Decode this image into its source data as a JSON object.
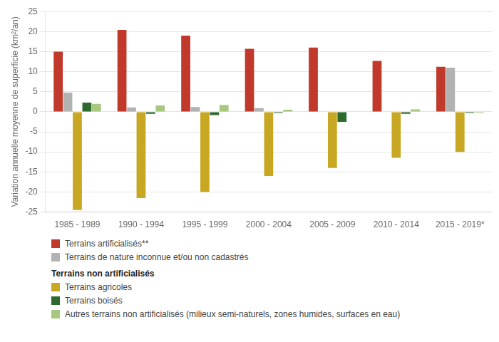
{
  "chart_data": {
    "type": "bar",
    "categories": [
      "1985 - 1989",
      "1990 - 1994",
      "1995 - 1999",
      "2000 - 2004",
      "2005 - 2009",
      "2010 - 2014",
      "2015 - 2019*"
    ],
    "series": [
      {
        "name": "Terrains artificialisés**",
        "color": "#c0392b",
        "values": [
          15,
          20.4,
          19,
          15.7,
          16,
          12.7,
          11.2
        ]
      },
      {
        "name": "Terrains de nature inconnue et/ou non cadastrés",
        "color": "#b2b2b2",
        "values": [
          4.8,
          1.1,
          1.2,
          0.9,
          0,
          0,
          11
        ]
      },
      {
        "name": "Terrains agricoles",
        "color": "#c8a822",
        "values": [
          -24.5,
          -21.5,
          -20,
          -16,
          -14,
          -11.5,
          -10
        ]
      },
      {
        "name": "Terrains boisés",
        "color": "#2d6a2d",
        "values": [
          2.3,
          -0.5,
          -0.8,
          -0.3,
          -2.5,
          -0.5,
          -0.3
        ]
      },
      {
        "name": "Autres terrains non artificialisés (milieux semi-naturels, zones humides, surfaces en eau)",
        "color": "#a8c880",
        "values": [
          2.0,
          1.6,
          1.7,
          0.5,
          0,
          0.6,
          -0.3
        ]
      }
    ],
    "y_label": "Variation annuelle moyenne de superficie (km²/an)",
    "ylim": [
      -25,
      25
    ],
    "yticks": [
      -25,
      -20,
      -15,
      -10,
      -5,
      0,
      5,
      10,
      15,
      20,
      25
    ],
    "grid": true,
    "legend": "bottom",
    "annotations": [
      "Terrains non artificialisés"
    ]
  }
}
